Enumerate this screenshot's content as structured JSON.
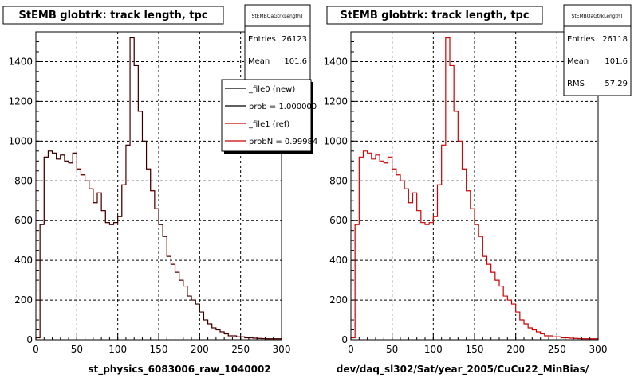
{
  "chart_data": [
    {
      "type": "histogram",
      "title": "StEMB globtrk: track length, tpc",
      "xlabel": "st_physics_6083006_raw_1040002",
      "xlim": [
        0,
        300
      ],
      "ylim": [
        0,
        1550
      ],
      "xticks": [
        0,
        50,
        100,
        150,
        200,
        250,
        300
      ],
      "yticks": [
        0,
        200,
        400,
        600,
        800,
        1000,
        1200,
        1400
      ],
      "grid": true,
      "bin_width": 5,
      "stats": {
        "name": "StEMBQaGtrkLengthT",
        "rows": [
          {
            "label": "Entries",
            "value": "26123"
          },
          {
            "label": "Mean",
            "value": "101.6"
          }
        ]
      },
      "legend": {
        "placement": "top-right",
        "entries": [
          {
            "label": "_file0 (new)",
            "color": "#000000"
          },
          {
            "label": "prob = 1.000000",
            "color": "#000000"
          },
          {
            "label": "_file1 (ref)",
            "color": "#cc0000"
          },
          {
            "label": "probN = 0.99984",
            "color": "#cc0000"
          }
        ]
      },
      "series": [
        {
          "color": "#cc0000",
          "values": [
            10,
            580,
            920,
            950,
            940,
            910,
            930,
            900,
            890,
            940,
            860,
            830,
            800,
            760,
            690,
            740,
            650,
            590,
            580,
            590,
            620,
            780,
            980,
            1520,
            1380,
            1150,
            1000,
            860,
            750,
            660,
            580,
            520,
            420,
            380,
            340,
            300,
            270,
            220,
            200,
            180,
            140,
            100,
            80,
            60,
            50,
            40,
            30,
            20,
            20,
            15,
            15,
            10,
            10,
            8,
            7,
            6,
            5,
            5,
            5,
            5
          ]
        },
        {
          "color": "#000000",
          "values": [
            10,
            580,
            920,
            950,
            940,
            910,
            930,
            900,
            890,
            940,
            860,
            830,
            800,
            760,
            690,
            740,
            650,
            590,
            580,
            590,
            620,
            780,
            980,
            1520,
            1380,
            1150,
            1000,
            860,
            750,
            660,
            580,
            520,
            420,
            380,
            340,
            300,
            270,
            220,
            200,
            180,
            140,
            100,
            80,
            60,
            50,
            40,
            30,
            20,
            20,
            15,
            15,
            10,
            10,
            8,
            7,
            6,
            5,
            5,
            5,
            5
          ]
        }
      ]
    },
    {
      "type": "histogram",
      "title": "StEMB globtrk: track length, tpc",
      "xlabel": "dev/daq_sl302/Sat/year_2005/CuCu22_MinBias/",
      "xlim": [
        0,
        300
      ],
      "ylim": [
        0,
        1550
      ],
      "xticks": [
        0,
        50,
        100,
        150,
        200,
        250,
        300
      ],
      "yticks": [
        0,
        200,
        400,
        600,
        800,
        1000,
        1200,
        1400
      ],
      "grid": true,
      "bin_width": 5,
      "stats": {
        "name": "StEMBQaGtrkLengthT",
        "rows": [
          {
            "label": "Entries",
            "value": "26118"
          },
          {
            "label": "Mean",
            "value": "101.6"
          },
          {
            "label": "RMS",
            "value": "57.29"
          }
        ]
      },
      "series": [
        {
          "color": "#cc0000",
          "values": [
            10,
            580,
            920,
            950,
            940,
            910,
            930,
            900,
            890,
            920,
            860,
            830,
            800,
            760,
            690,
            740,
            650,
            590,
            580,
            590,
            620,
            780,
            980,
            1520,
            1380,
            1150,
            1000,
            860,
            750,
            660,
            580,
            520,
            420,
            380,
            340,
            300,
            270,
            220,
            200,
            180,
            140,
            100,
            80,
            60,
            50,
            40,
            30,
            20,
            20,
            15,
            15,
            10,
            10,
            8,
            7,
            6,
            5,
            5,
            5,
            5
          ]
        }
      ]
    }
  ]
}
